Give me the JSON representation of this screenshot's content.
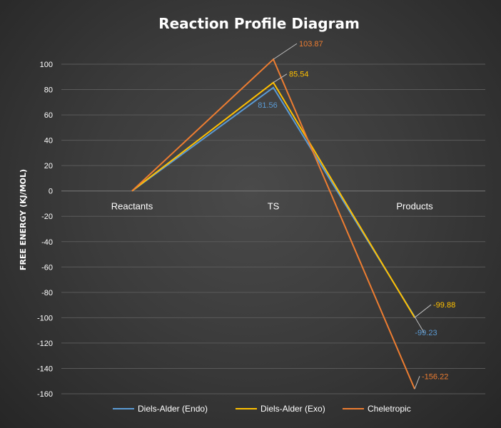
{
  "chart_data": {
    "type": "line",
    "title": "Reaction Profile Diagram",
    "ylabel": "FREE ENERGY (KJ/MOL)",
    "xlabel": "",
    "categories": [
      "Reactants",
      "TS",
      "Products"
    ],
    "ylim": [
      -160,
      100
    ],
    "yticks": [
      100,
      80,
      60,
      40,
      20,
      0,
      -20,
      -40,
      -60,
      -80,
      -100,
      -120,
      -140,
      -160
    ],
    "grid": true,
    "legend_position": "bottom",
    "series": [
      {
        "name": "Diels-Alder (Endo)",
        "values": [
          0,
          81.56,
          -99.23
        ],
        "labels": [
          "",
          "81.56",
          "-99.23"
        ],
        "color": "#5b9bd5"
      },
      {
        "name": "Diels-Alder (Exo)",
        "values": [
          0,
          85.54,
          -99.88
        ],
        "labels": [
          "",
          "85.54",
          "-99.88"
        ],
        "color": "#ffc000"
      },
      {
        "name": "Cheletropic",
        "values": [
          0,
          103.87,
          -156.22
        ],
        "labels": [
          "",
          "103.87",
          "-156.22"
        ],
        "color": "#ed7d31"
      }
    ]
  }
}
